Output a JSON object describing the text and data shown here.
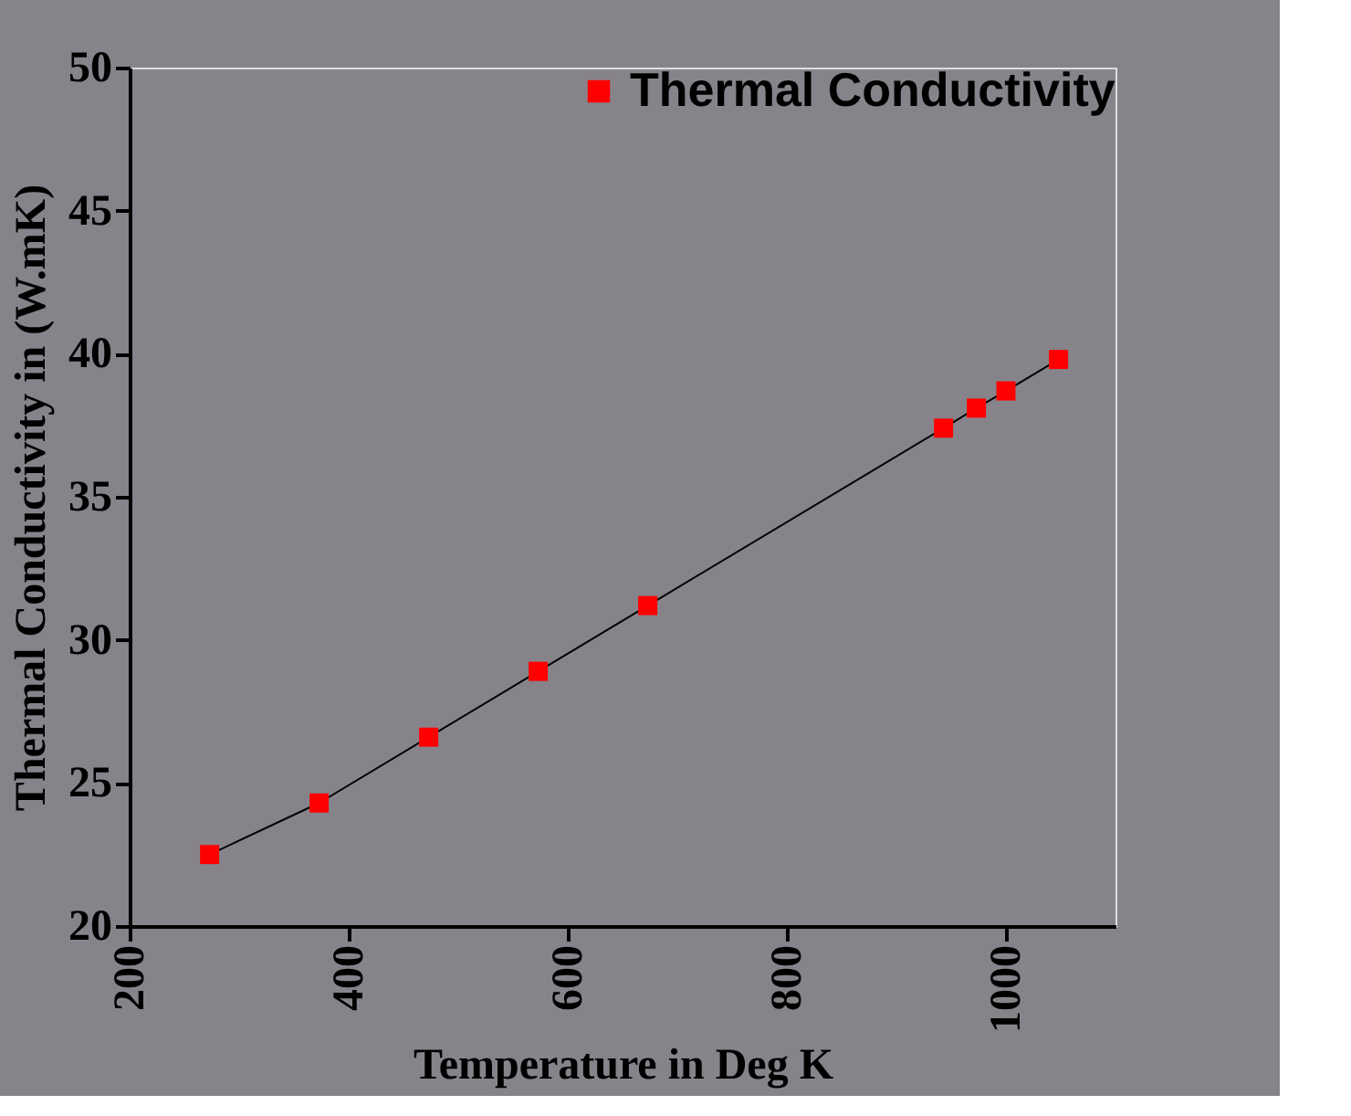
{
  "chart_data": {
    "type": "line",
    "xlabel": "Temperature in Deg K",
    "ylabel": "Thermal Conductivity in (W.mK)",
    "x": [
      273,
      373,
      473,
      573,
      673,
      943,
      973,
      1000,
      1048
    ],
    "series": [
      {
        "name": "Thermal Conductivity",
        "color": "#ff0000",
        "values": [
          22.5,
          24.3,
          26.6,
          28.9,
          31.2,
          37.4,
          38.1,
          38.7,
          39.8
        ]
      }
    ],
    "xlim": [
      200,
      1100
    ],
    "xticks": [
      200,
      400,
      600,
      800,
      1000
    ],
    "ylim": [
      20,
      50
    ],
    "yticks": [
      20,
      25,
      30,
      35,
      40,
      45,
      50
    ],
    "marker": "square",
    "line_style": "solid",
    "legend": "top right",
    "grid": false
  }
}
